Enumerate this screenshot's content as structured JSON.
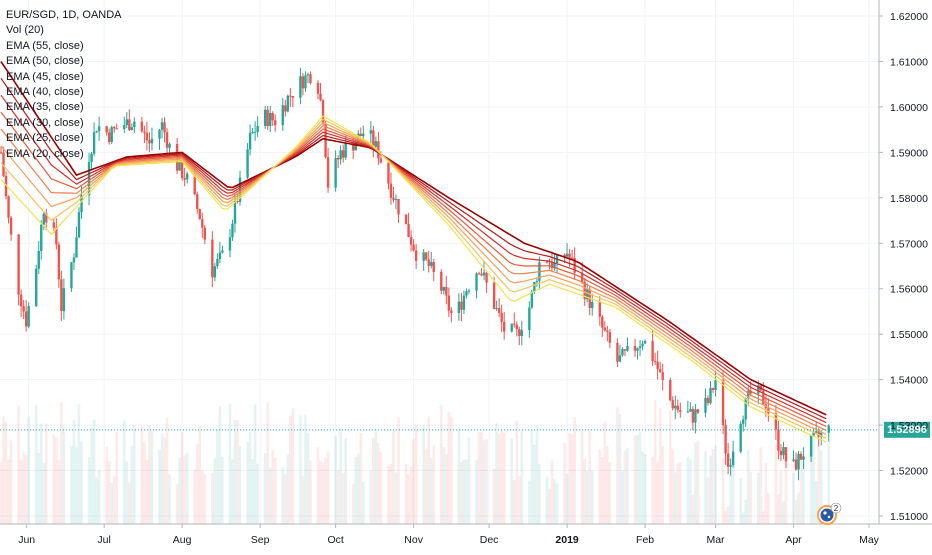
{
  "chart_data": {
    "type": "candlestick",
    "title": "EUR/SGD, 1D, OANDA",
    "legend": [
      "EUR/SGD, 1D, OANDA",
      "Vol (20)",
      "EMA (55, close)",
      "EMA (50, close)",
      "EMA (45, close)",
      "EMA (40, close)",
      "EMA (35, close)",
      "EMA (30, close)",
      "EMA (25, close)",
      "EMA (20, close)"
    ],
    "legend_position": "top-left",
    "y_axis": {
      "position": "right",
      "ticks": [
        "1.62000",
        "1.61000",
        "1.60000",
        "1.59000",
        "1.58000",
        "1.57000",
        "1.56000",
        "1.55000",
        "1.54000",
        "1.53000",
        "1.52000",
        "1.51000"
      ],
      "range": [
        1.5075,
        1.6225
      ]
    },
    "x_axis": {
      "ticks": [
        "Jun",
        "Jul",
        "Aug",
        "Sep",
        "Oct",
        "Nov",
        "Dec",
        "2019",
        "Feb",
        "Mar",
        "Apr",
        "May"
      ],
      "bold_tick": "2019"
    },
    "last_price": "1.52896",
    "last_price_value": 1.52896,
    "grid": true,
    "volume_overlay": true,
    "approx_close_path": [
      [
        "2018-05-21",
        1.59
      ],
      [
        "2018-05-24",
        1.575
      ],
      [
        "2018-05-28",
        1.56
      ],
      [
        "2018-05-31",
        1.553
      ],
      [
        "2018-06-04",
        1.565
      ],
      [
        "2018-06-07",
        1.578
      ],
      [
        "2018-06-12",
        1.57
      ],
      [
        "2018-06-14",
        1.556
      ],
      [
        "2018-06-19",
        1.568
      ],
      [
        "2018-06-23",
        1.585
      ],
      [
        "2018-06-28",
        1.596
      ],
      [
        "2018-07-03",
        1.594
      ],
      [
        "2018-07-08",
        1.596
      ],
      [
        "2018-07-13",
        1.597
      ],
      [
        "2018-07-19",
        1.592
      ],
      [
        "2018-07-24",
        1.596
      ],
      [
        "2018-07-29",
        1.588
      ],
      [
        "2018-08-03",
        1.584
      ],
      [
        "2018-08-08",
        1.576
      ],
      [
        "2018-08-13",
        1.564
      ],
      [
        "2018-08-18",
        1.568
      ],
      [
        "2018-08-23",
        1.58
      ],
      [
        "2018-08-28",
        1.593
      ],
      [
        "2018-09-02",
        1.598
      ],
      [
        "2018-09-07",
        1.597
      ],
      [
        "2018-09-12",
        1.602
      ],
      [
        "2018-09-18",
        1.606
      ],
      [
        "2018-09-23",
        1.608
      ],
      [
        "2018-09-26",
        1.598
      ],
      [
        "2018-09-28",
        1.583
      ],
      [
        "2018-10-03",
        1.59
      ],
      [
        "2018-10-08",
        1.592
      ],
      [
        "2018-10-13",
        1.595
      ],
      [
        "2018-10-18",
        1.59
      ],
      [
        "2018-10-23",
        1.582
      ],
      [
        "2018-10-28",
        1.575
      ],
      [
        "2018-11-02",
        1.568
      ],
      [
        "2018-11-07",
        1.565
      ],
      [
        "2018-11-12",
        1.56
      ],
      [
        "2018-11-17",
        1.553
      ],
      [
        "2018-11-22",
        1.56
      ],
      [
        "2018-11-27",
        1.565
      ],
      [
        "2018-12-02",
        1.558
      ],
      [
        "2018-12-07",
        1.551
      ],
      [
        "2018-12-12",
        1.55
      ],
      [
        "2018-12-17",
        1.556
      ],
      [
        "2018-12-22",
        1.568
      ],
      [
        "2018-12-27",
        1.565
      ],
      [
        "2019-01-01",
        1.568
      ],
      [
        "2019-01-06",
        1.562
      ],
      [
        "2019-01-11",
        1.556
      ],
      [
        "2019-01-16",
        1.55
      ],
      [
        "2019-01-21",
        1.544
      ],
      [
        "2019-01-26",
        1.546
      ],
      [
        "2019-01-31",
        1.549
      ],
      [
        "2019-02-05",
        1.544
      ],
      [
        "2019-02-10",
        1.536
      ],
      [
        "2019-02-15",
        1.533
      ],
      [
        "2019-02-20",
        1.532
      ],
      [
        "2019-02-26",
        1.535
      ],
      [
        "2019-03-01",
        1.54
      ],
      [
        "2019-03-06",
        1.521
      ],
      [
        "2019-03-11",
        1.532
      ],
      [
        "2019-03-16",
        1.538
      ],
      [
        "2019-03-21",
        1.535
      ],
      [
        "2019-03-26",
        1.526
      ],
      [
        "2019-03-31",
        1.52
      ],
      [
        "2019-04-05",
        1.524
      ],
      [
        "2019-04-10",
        1.527
      ],
      [
        "2019-04-15",
        1.529
      ]
    ],
    "approx_ema_path_20_to_55": [
      {
        "period": 20,
        "color": "#f5e63a",
        "points": [
          [
            "2018-05-21",
            1.584
          ],
          [
            "2018-06-10",
            1.572
          ],
          [
            "2018-07-05",
            1.587
          ],
          [
            "2018-08-01",
            1.588
          ],
          [
            "2018-08-18",
            1.577
          ],
          [
            "2018-09-15",
            1.591
          ],
          [
            "2018-09-26",
            1.598
          ],
          [
            "2018-10-15",
            1.592
          ],
          [
            "2018-11-15",
            1.574
          ],
          [
            "2018-12-10",
            1.557
          ],
          [
            "2018-12-25",
            1.561
          ],
          [
            "2019-01-20",
            1.556
          ],
          [
            "2019-02-20",
            1.544
          ],
          [
            "2019-03-15",
            1.534
          ],
          [
            "2019-04-15",
            1.526
          ]
        ]
      },
      {
        "period": 55,
        "color": "#990000",
        "points": [
          [
            "2018-05-21",
            1.61
          ],
          [
            "2018-06-20",
            1.585
          ],
          [
            "2018-07-10",
            1.589
          ],
          [
            "2018-08-01",
            1.59
          ],
          [
            "2018-08-20",
            1.582
          ],
          [
            "2018-09-15",
            1.589
          ],
          [
            "2018-09-26",
            1.593
          ],
          [
            "2018-10-15",
            1.591
          ],
          [
            "2018-11-15",
            1.58
          ],
          [
            "2018-12-15",
            1.57
          ],
          [
            "2019-01-05",
            1.566
          ],
          [
            "2019-02-10",
            1.553
          ],
          [
            "2019-03-15",
            1.54
          ],
          [
            "2019-04-15",
            1.532
          ]
        ]
      }
    ],
    "ema_colors": [
      "#990000",
      "#b71c1c",
      "#d32f2f",
      "#e55a3b",
      "#f07f4a",
      "#f5a25a",
      "#f6c45e",
      "#f3e24f"
    ],
    "up_color": "#26a69a",
    "down_color": "#ef5350"
  },
  "logo": {
    "badge": "2"
  }
}
